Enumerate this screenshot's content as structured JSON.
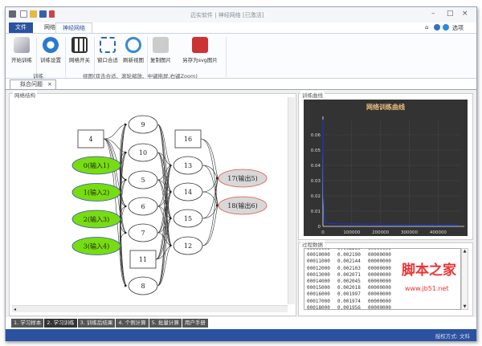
{
  "window": {
    "title": "迈实软件 | 神经网络 [已激活]"
  },
  "ribbon": {
    "file_tab": "文件",
    "tabs": [
      "网络",
      "神经网络"
    ],
    "active_tab": 1,
    "right": {
      "options_label": "选项"
    },
    "buttons": [
      {
        "label": "开始训练",
        "icon": "train-brush-icon"
      },
      {
        "label": "训练设置",
        "icon": "gear-icon"
      },
      {
        "label": "网格开关",
        "icon": "grid-icon"
      },
      {
        "label": "窗口合适",
        "icon": "fit-window-icon"
      },
      {
        "label": "刷新视图",
        "icon": "refresh-icon"
      },
      {
        "label": "复制图片",
        "icon": "copy-image-icon"
      },
      {
        "label": "另存为svg图片",
        "icon": "save-svg-icon"
      }
    ],
    "groups": [
      "训练",
      "视图(双击合适、滚轮缩放、中键拖屏,右键Zoom)"
    ]
  },
  "doc_tab": {
    "label": "拟合问题"
  },
  "network_panel": {
    "title": "网络结构",
    "layers": [
      {
        "bias": "4",
        "nodes": [
          "0(输入1)",
          "1(输入2)",
          "2(输入3)",
          "3(输入4)"
        ]
      },
      {
        "bias": "11",
        "nodes": [
          "9",
          "10",
          "5",
          "6",
          "7",
          "8"
        ]
      },
      {
        "bias": "16",
        "nodes": [
          "13",
          "14",
          "15",
          "12"
        ]
      },
      {
        "nodes": [
          "17(输出5)",
          "18(输出6)"
        ]
      }
    ],
    "colors": {
      "input": "#77dd11",
      "output": "#d8d8d8",
      "output_border": "#e05050"
    }
  },
  "curve_panel": {
    "title": "训练曲线"
  },
  "chart_data": {
    "type": "line",
    "title": "网络训练曲线",
    "xlabel": "",
    "ylabel": "",
    "xlim": [
      0,
      480000
    ],
    "ylim": [
      0,
      0.07
    ],
    "xticks": [
      "0",
      "100000",
      "200000",
      "300000",
      "400000"
    ],
    "yticks": [
      "0",
      "0.01",
      "0.02",
      "0.03",
      "0.04",
      "0.05",
      "0.06"
    ],
    "grid": true,
    "background": "#333333",
    "line_color": "#2233aa",
    "x": [
      0,
      2000,
      5000,
      10000,
      20000,
      50000,
      100000,
      200000,
      300000,
      400000,
      470000
    ],
    "y": [
      0.07,
      0.02,
      0.006,
      0.0022,
      0.0019,
      0.0017,
      0.0015,
      0.0013,
      0.0012,
      0.0011,
      0.0011
    ]
  },
  "process_panel": {
    "title": "过程数据",
    "rows": [
      [
        "00009000",
        "0.002260",
        "00000000"
      ],
      [
        "00010000",
        "0.002190",
        "00000000"
      ],
      [
        "00011000",
        "0.002144",
        "00000000"
      ],
      [
        "00012000",
        "0.002103",
        "00000000"
      ],
      [
        "00013000",
        "0.002071",
        "00000000"
      ],
      [
        "00014000",
        "0.002045",
        "00000000"
      ],
      [
        "00015000",
        "0.002018",
        "00000000"
      ],
      [
        "00016000",
        "0.001997",
        "00000000"
      ],
      [
        "00017000",
        "0.001974",
        "00000000"
      ],
      [
        "00018000",
        "0.001956",
        "00000000"
      ]
    ]
  },
  "watermark": {
    "text": "脚本之家",
    "url": "www.jb51.net"
  },
  "bottom_tabs": [
    "1. 学习样本",
    "2. 学习训练",
    "3. 训练后结果",
    "4. 个例计算",
    "5. 批量计算",
    "用户手册"
  ],
  "active_bottom_tab": 1,
  "status": {
    "license": "授权方式: 文科"
  }
}
